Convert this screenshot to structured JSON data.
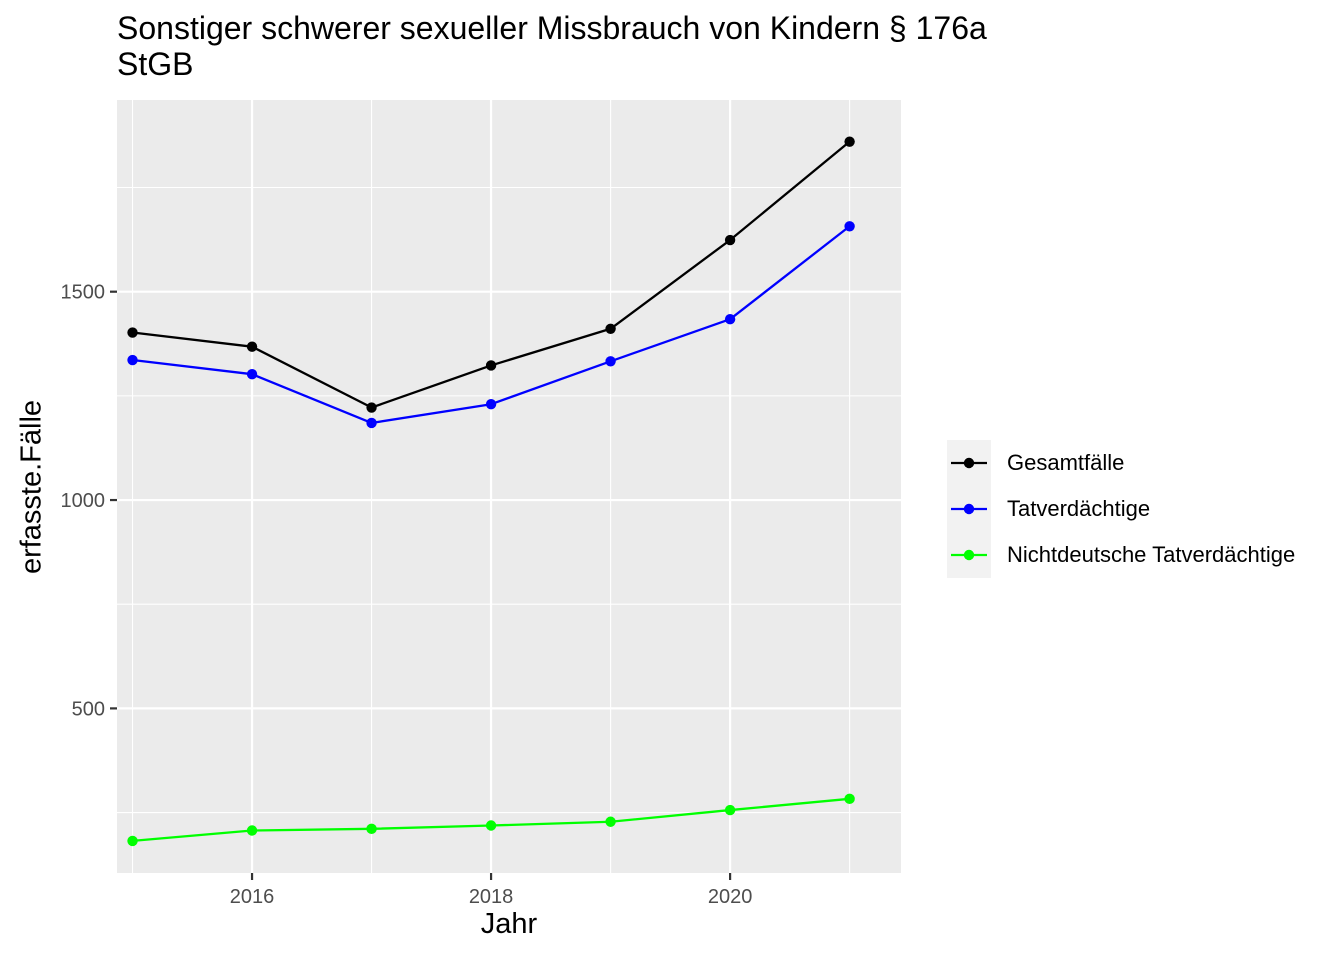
{
  "chart_data": {
    "type": "line",
    "title_lines": [
      "Sonstiger schwerer sexueller Missbrauch von Kindern § 176a",
      "StGB"
    ],
    "xlabel": "Jahr",
    "ylabel": "erfasste.Fälle",
    "x": [
      2015,
      2016,
      2017,
      2018,
      2019,
      2020,
      2021
    ],
    "xlim": [
      2014.87,
      2021.43
    ],
    "ylim": [
      105,
      1960
    ],
    "x_ticks": [
      2016,
      2018,
      2020
    ],
    "y_ticks": [
      500,
      1000,
      1500
    ],
    "x_minor": [
      2015,
      2017,
      2019,
      2021
    ],
    "y_minor": [
      250,
      750,
      1250,
      1750
    ],
    "grid": true,
    "legend_position": "right",
    "series": [
      {
        "name": "Gesamtfälle",
        "color": "#000000",
        "values": [
          1402,
          1368,
          1222,
          1323,
          1411,
          1624,
          1860
        ]
      },
      {
        "name": "Tatverdächtige",
        "color": "#0000ff",
        "values": [
          1336,
          1302,
          1185,
          1230,
          1333,
          1434,
          1657
        ]
      },
      {
        "name": "Nichtdeutsche Tatverdächtige",
        "color": "#00ff00",
        "values": [
          182,
          207,
          211,
          219,
          228,
          256,
          283
        ]
      }
    ]
  }
}
